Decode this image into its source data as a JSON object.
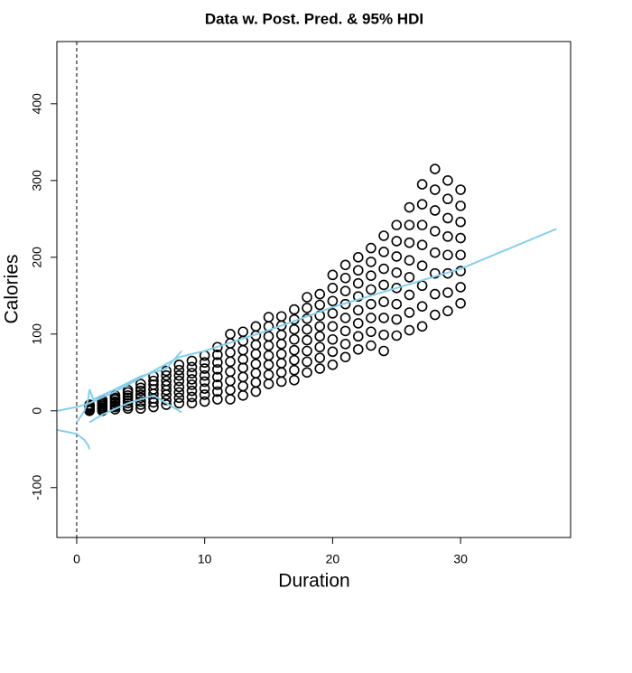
{
  "chart_data": {
    "type": "scatter",
    "title": "Data w. Post. Pred. & 95% HDI",
    "x_label": "Duration",
    "y_label": "Calories",
    "xlim": [
      -1.55,
      38.6
    ],
    "ylim": [
      -165,
      481
    ],
    "xticks": [
      0,
      10,
      20,
      30
    ],
    "yticks": [
      -100,
      0,
      100,
      200,
      300,
      400
    ],
    "vline": 0,
    "point_color": "#000000",
    "x": [
      1,
      1,
      1,
      1,
      1,
      1,
      1,
      1,
      2,
      2,
      2,
      2,
      2,
      2,
      2,
      2,
      3,
      3,
      3,
      3,
      3,
      3,
      3,
      3,
      4,
      4,
      4,
      4,
      4,
      4,
      4,
      4,
      5,
      5,
      5,
      5,
      5,
      5,
      5,
      5,
      6,
      6,
      6,
      6,
      6,
      6,
      6,
      6,
      7,
      7,
      7,
      7,
      7,
      7,
      7,
      7,
      8,
      8,
      8,
      8,
      8,
      8,
      8,
      8,
      9,
      9,
      9,
      9,
      9,
      9,
      9,
      9,
      10,
      10,
      10,
      10,
      10,
      10,
      10,
      10,
      11,
      11,
      11,
      11,
      11,
      11,
      11,
      11,
      12,
      12,
      12,
      12,
      12,
      12,
      12,
      12,
      13,
      13,
      13,
      13,
      13,
      13,
      13,
      13,
      14,
      14,
      14,
      14,
      14,
      14,
      14,
      14,
      15,
      15,
      15,
      15,
      15,
      15,
      15,
      15,
      16,
      16,
      16,
      16,
      16,
      16,
      16,
      16,
      17,
      17,
      17,
      17,
      17,
      17,
      17,
      17,
      18,
      18,
      18,
      18,
      18,
      18,
      18,
      18,
      19,
      19,
      19,
      19,
      19,
      19,
      19,
      19,
      20,
      20,
      20,
      20,
      20,
      20,
      20,
      20,
      21,
      21,
      21,
      21,
      21,
      21,
      21,
      21,
      22,
      22,
      22,
      22,
      22,
      22,
      22,
      22,
      23,
      23,
      23,
      23,
      23,
      23,
      23,
      23,
      24,
      24,
      24,
      24,
      24,
      24,
      24,
      24,
      25,
      25,
      25,
      25,
      25,
      25,
      25,
      25,
      26,
      26,
      26,
      26,
      26,
      26,
      26,
      26,
      27,
      27,
      27,
      27,
      27,
      27,
      27,
      27,
      28,
      28,
      28,
      28,
      28,
      28,
      28,
      28,
      29,
      29,
      29,
      29,
      29,
      29,
      29,
      29,
      30,
      30,
      30,
      30,
      30,
      30,
      30,
      30
    ],
    "y": [
      0,
      1,
      2,
      3,
      5,
      6,
      7,
      8,
      0,
      2,
      4,
      6,
      8,
      10,
      12,
      14,
      2,
      5,
      7,
      10,
      12,
      15,
      17,
      20,
      3,
      6,
      10,
      13,
      17,
      20,
      24,
      27,
      3,
      8,
      12,
      17,
      21,
      26,
      30,
      35,
      5,
      11,
      16,
      22,
      28,
      34,
      39,
      45,
      8,
      14,
      21,
      27,
      33,
      39,
      46,
      52,
      10,
      17,
      24,
      31,
      39,
      46,
      53,
      60,
      10,
      18,
      26,
      34,
      41,
      49,
      57,
      65,
      12,
      21,
      29,
      38,
      46,
      55,
      63,
      72,
      15,
      25,
      34,
      44,
      54,
      63,
      73,
      83,
      15,
      27,
      39,
      51,
      64,
      76,
      88,
      100,
      20,
      32,
      44,
      56,
      67,
      79,
      91,
      103,
      25,
      37,
      49,
      61,
      74,
      86,
      98,
      110,
      35,
      47,
      60,
      72,
      85,
      97,
      110,
      122,
      38,
      50,
      62,
      74,
      87,
      99,
      111,
      123,
      40,
      53,
      66,
      79,
      93,
      106,
      119,
      132,
      50,
      64,
      78,
      92,
      106,
      120,
      134,
      148,
      55,
      69,
      83,
      97,
      110,
      124,
      138,
      152,
      60,
      77,
      93,
      110,
      127,
      143,
      160,
      177,
      70,
      87,
      104,
      121,
      139,
      156,
      173,
      190,
      80,
      97,
      114,
      131,
      149,
      166,
      183,
      200,
      85,
      103,
      121,
      139,
      158,
      176,
      194,
      212,
      78,
      99,
      121,
      142,
      164,
      185,
      207,
      228,
      98,
      119,
      139,
      160,
      180,
      201,
      221,
      242,
      105,
      128,
      151,
      174,
      196,
      219,
      242,
      265,
      110,
      136,
      163,
      189,
      216,
      242,
      269,
      295,
      125,
      152,
      179,
      206,
      234,
      261,
      288,
      315,
      130,
      154,
      179,
      203,
      227,
      251,
      276,
      300,
      140,
      161,
      182,
      203,
      225,
      246,
      267,
      288
    ],
    "lines": [
      {
        "color": "#87ceeb",
        "x": [
          -1.5,
          0,
          1,
          3,
          5,
          8,
          10,
          15,
          20,
          25,
          30,
          37.5
        ],
        "y": [
          0,
          5,
          10,
          25,
          43,
          70,
          78,
          105,
          135,
          160,
          185,
          237
        ]
      },
      {
        "color": "#87ceeb",
        "x": [
          -1.5,
          0,
          0.6,
          0.9,
          1
        ],
        "y": [
          -25,
          -30,
          -38,
          -45,
          -50
        ]
      },
      {
        "color": "#87ceeb",
        "x": [
          1,
          2,
          4,
          6,
          7.5,
          8.2
        ],
        "y": [
          -15,
          -5,
          10,
          20,
          5,
          -2
        ]
      },
      {
        "color": "#87ceeb",
        "x": [
          0,
          0.6,
          0.9,
          1,
          1.3,
          3,
          5,
          7,
          8.2
        ],
        "y": [
          -15,
          0,
          15,
          28,
          15,
          28,
          45,
          55,
          78
        ]
      }
    ]
  }
}
